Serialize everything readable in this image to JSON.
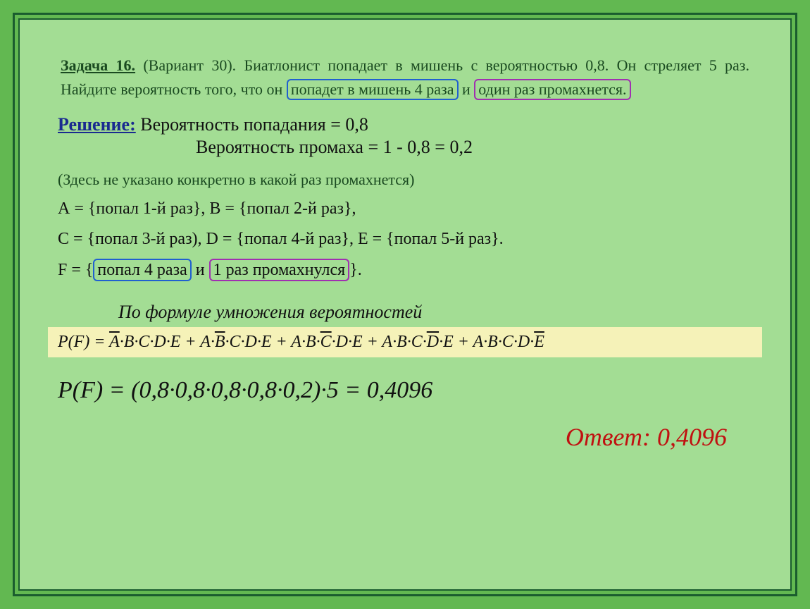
{
  "colors": {
    "page_bg": "#62b851",
    "slide_bg": "#a3dd94",
    "frame": "#1a5c2e",
    "problem_text": "#1a4a20",
    "solution_label": "#1a2a90",
    "body_text": "#111111",
    "highlight_bg": "#f5f2b8",
    "hl_blue": "#2060d0",
    "hl_purple": "#a030b0",
    "answer": "#c01010"
  },
  "problem": {
    "title": "Задача 16.",
    "variant": "(Вариант 30).",
    "text": "Биатлонист попадает в мишень с вероятностью 0,8. Он стреляет 5 раз. Найдите вероятность того, что он",
    "hl_blue": "попадет в мишень 4 раза",
    "conj": "и",
    "hl_purple": "один раз промахнется.",
    "fontsize": 22
  },
  "solution": {
    "label": "Решение:",
    "line1": "Вероятность попадания = 0,8",
    "line2": "Вероятность промаха = 1 - 0,8 = 0,2",
    "p_hit": 0.8,
    "p_miss": 0.2,
    "fontsize": 26
  },
  "note": "(Здесь не указано конкретно в какой раз промахнется)",
  "events": {
    "line1": "А = {попал 1-й раз}, В = {попал 2-й раз},",
    "line2": "С = {попал 3-й раз), D = {попал 4-й раз}, Е = {попал 5-й раз}.",
    "line3_pre": "F = {",
    "line3_blue": "попал 4 раза",
    "line3_conj": "и",
    "line3_purple": "1 раз промахнулся",
    "line3_post": "}.",
    "fontsize": 24
  },
  "formula": {
    "caption": "По формуле умножения вероятностей",
    "lhs": "P(F) = ",
    "terms": [
      {
        "bar": "A",
        "rest": "·B·C·D·E"
      },
      {
        "pre": "A·",
        "bar": "B",
        "rest": "·C·D·E"
      },
      {
        "pre": "A·B·",
        "bar": "C",
        "rest": "·D·E"
      },
      {
        "pre": "A·B·C·",
        "bar": "D",
        "rest": "·E"
      },
      {
        "pre": "A·B·C·D·",
        "bar": "E",
        "rest": ""
      }
    ],
    "fontsize": 24
  },
  "calc": {
    "text": "P(F) = (0,8·0,8·0,8·0,8·0,2)·5 = 0,4096",
    "factors": [
      0.8,
      0.8,
      0.8,
      0.8,
      0.2
    ],
    "mult": 5,
    "result": 0.4096,
    "fontsize": 34
  },
  "answer": {
    "label": "Ответ:",
    "value": "0,4096",
    "fontsize": 36
  }
}
